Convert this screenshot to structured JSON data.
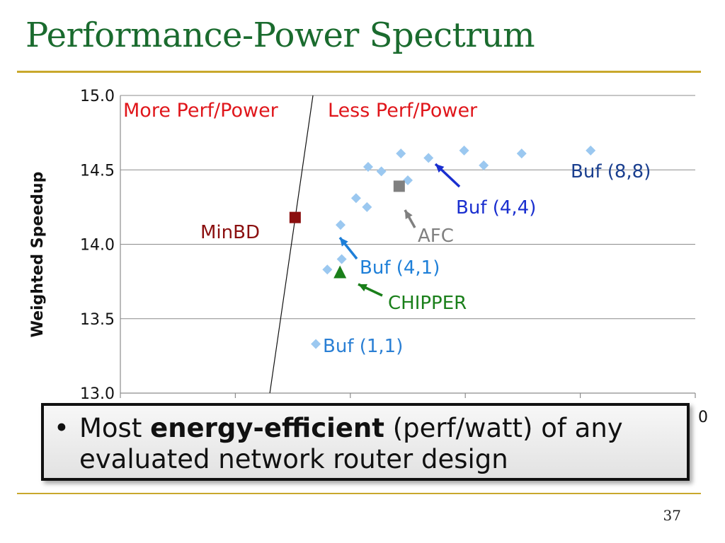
{
  "slide": {
    "title": "Performance-Power Spectrum",
    "slide_number": "37"
  },
  "callout": {
    "bullet": "•",
    "text_before": "Most ",
    "text_bold": "energy-efficient",
    "text_after": " (perf/watt) of any evaluated network router design"
  },
  "chart_data": {
    "type": "scatter",
    "title": "",
    "xlabel": "",
    "ylabel": "Weighted Speedup",
    "ylim": [
      13.0,
      15.0
    ],
    "yticks": [
      "13.0",
      "13.5",
      "14.0",
      "14.5",
      "15.0"
    ],
    "xlim": [
      0,
      1
    ],
    "x_visible_tick_fragment": "0",
    "grid": true,
    "region_labels": {
      "left": "More Perf/Power",
      "right": "Less Perf/Power",
      "color": "#e0161b"
    },
    "divider_line": {
      "x1": 0.26,
      "y1": 13.0,
      "x2": 0.335,
      "y2": 15.0
    },
    "series": [
      {
        "name": "",
        "marker": "diamond",
        "color": "#9bc8f0",
        "points": [
          {
            "x": 0.34,
            "y": 13.33
          },
          {
            "x": 0.36,
            "y": 13.83
          },
          {
            "x": 0.385,
            "y": 13.9
          },
          {
            "x": 0.383,
            "y": 14.13
          },
          {
            "x": 0.41,
            "y": 14.31
          },
          {
            "x": 0.429,
            "y": 14.25
          },
          {
            "x": 0.431,
            "y": 14.52
          },
          {
            "x": 0.454,
            "y": 14.49
          },
          {
            "x": 0.488,
            "y": 14.61
          },
          {
            "x": 0.5,
            "y": 14.43
          },
          {
            "x": 0.536,
            "y": 14.58
          },
          {
            "x": 0.598,
            "y": 14.63
          },
          {
            "x": 0.632,
            "y": 14.53
          },
          {
            "x": 0.698,
            "y": 14.61
          },
          {
            "x": 0.818,
            "y": 14.63
          }
        ]
      },
      {
        "name": "MinBD",
        "marker": "square",
        "color": "#8b0f0f",
        "points": [
          {
            "x": 0.304,
            "y": 14.18
          }
        ]
      },
      {
        "name": "AFC",
        "marker": "square",
        "color": "#808080",
        "points": [
          {
            "x": 0.485,
            "y": 14.39
          }
        ]
      },
      {
        "name": "CHIPPER",
        "marker": "triangle",
        "color": "#1a7f1a",
        "points": [
          {
            "x": 0.382,
            "y": 13.81
          }
        ]
      }
    ],
    "annotations": [
      {
        "text": "Buf (1,1)",
        "color": "#2a7fd4",
        "arrow": false
      },
      {
        "text": "Buf (4,1)",
        "color": "#1e7fd8",
        "arrow": true
      },
      {
        "text": "CHIPPER",
        "color": "#1a7f1a",
        "arrow": true
      },
      {
        "text": "MinBD",
        "color": "#8b0f0f",
        "arrow": false
      },
      {
        "text": "AFC",
        "color": "#808080",
        "arrow": true
      },
      {
        "text": "Buf (4,4)",
        "color": "#1a2fcf",
        "arrow": true
      },
      {
        "text": "Buf (8,8)",
        "color": "#1a3f8f",
        "arrow": false
      }
    ]
  }
}
